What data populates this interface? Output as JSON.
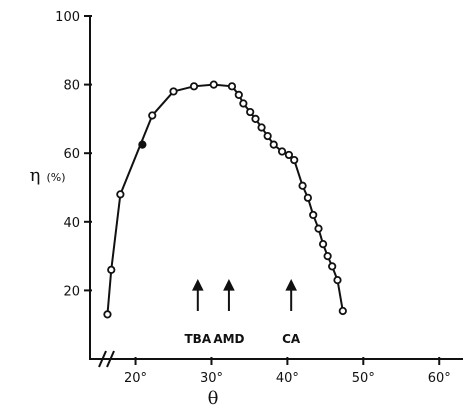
{
  "chart_data": {
    "type": "scatter",
    "title": "",
    "subtitle": "",
    "xlabel": "θ",
    "ylabel": "η",
    "ylabel_unit": "(%)",
    "xlim": [
      14,
      63
    ],
    "ylim": [
      0,
      100
    ],
    "xticks": [
      20,
      30,
      40,
      50,
      60
    ],
    "xtick_labels": [
      "20°",
      "30°",
      "40°",
      "50°",
      "60°"
    ],
    "yticks": [
      20,
      40,
      60,
      80,
      100
    ],
    "ytick_labels": [
      "20",
      "40",
      "60",
      "80",
      "100"
    ],
    "grid": false,
    "axis_break": true,
    "line_color": "#111111",
    "series": [
      {
        "marker": "open-circle",
        "line": true,
        "points": [
          {
            "x": 16.3,
            "y": 13
          },
          {
            "x": 16.8,
            "y": 26
          },
          {
            "x": 18.0,
            "y": 48
          },
          {
            "x": 22.2,
            "y": 71
          },
          {
            "x": 25.0,
            "y": 78
          },
          {
            "x": 27.7,
            "y": 79.5
          },
          {
            "x": 30.3,
            "y": 80
          },
          {
            "x": 32.7,
            "y": 79.5
          },
          {
            "x": 33.6,
            "y": 77
          },
          {
            "x": 34.2,
            "y": 74.5
          },
          {
            "x": 35.1,
            "y": 72
          },
          {
            "x": 35.8,
            "y": 70
          },
          {
            "x": 36.6,
            "y": 67.5
          },
          {
            "x": 37.4,
            "y": 65
          },
          {
            "x": 38.2,
            "y": 62.5
          },
          {
            "x": 39.3,
            "y": 60.5
          },
          {
            "x": 40.2,
            "y": 59.5
          },
          {
            "x": 40.9,
            "y": 58
          },
          {
            "x": 42.0,
            "y": 50.5
          },
          {
            "x": 42.7,
            "y": 47
          },
          {
            "x": 43.4,
            "y": 42
          },
          {
            "x": 44.1,
            "y": 38
          },
          {
            "x": 44.7,
            "y": 33.5
          },
          {
            "x": 45.3,
            "y": 30
          },
          {
            "x": 45.9,
            "y": 27
          },
          {
            "x": 46.6,
            "y": 23
          },
          {
            "x": 47.3,
            "y": 14
          }
        ]
      },
      {
        "marker": "filled-circle",
        "line": false,
        "points": [
          {
            "x": 20.9,
            "y": 62.5
          }
        ]
      }
    ],
    "annotations": [
      {
        "label": "TBA",
        "x": 28.2,
        "arrow_from_y": 14,
        "arrow_to_y": 23
      },
      {
        "label": "AMD",
        "x": 32.3,
        "arrow_from_y": 14,
        "arrow_to_y": 23
      },
      {
        "label": "CA",
        "x": 40.5,
        "arrow_from_y": 14,
        "arrow_to_y": 23
      }
    ]
  }
}
